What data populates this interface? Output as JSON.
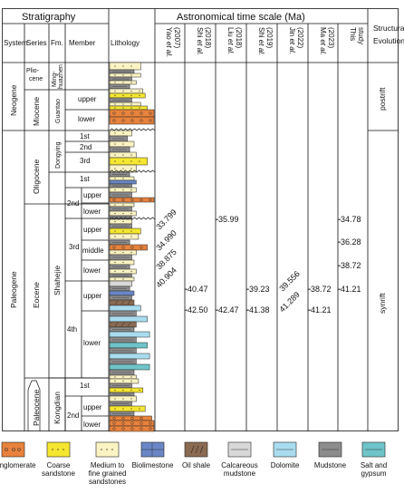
{
  "header": {
    "stratigraphy": "Stratigraphy",
    "system": "System",
    "series": "Series",
    "formation": "Fm.",
    "member": "Member",
    "lithology": "Lithology",
    "time_scale": "Astronomical time scale (Ma)",
    "structural_evolution": "Structural Evolution"
  },
  "systems": {
    "neogene": "Neogene",
    "paleogene": "Paleogene"
  },
  "series": {
    "pliocene": "Plio-\ncene",
    "miocene": "Miocene",
    "oligocene": "Oligocene",
    "eocene": "Eocene",
    "paleocene": "Paleocene"
  },
  "formations": {
    "minghuazhen": "Ming-\nhuazhen",
    "guantao": "Guantao",
    "dongying": "Dongying",
    "shahejie": "Shahejie",
    "kongdian": "Kongdian"
  },
  "members": {
    "guantao_upper": "upper",
    "guantao_lower": "lower",
    "dongying_1st": "1st",
    "dongying_2nd": "2nd",
    "dongying_3rd": "3rd",
    "shahejie_1st": "1st",
    "shahejie_2nd": "2nd",
    "shahejie_2nd_upper": "upper",
    "shahejie_2nd_lower": "lower",
    "shahejie_3rd": "3rd",
    "shahejie_3rd_upper": "upper",
    "shahejie_3rd_middle": "middle",
    "shahejie_3rd_lower": "lower",
    "shahejie_4th": "4th",
    "shahejie_4th_upper": "upper",
    "shahejie_4th_lower": "lower",
    "kongdian_1st": "1st",
    "kongdian_2nd": "2nd",
    "kongdian_2nd_upper": "upper",
    "kongdian_2nd_lower": "lower"
  },
  "studies": [
    {
      "author": "Yao",
      "etal": "et al.",
      "year": "(2007)"
    },
    {
      "author": "Shi",
      "etal": "et al.",
      "year": "(2018)"
    },
    {
      "author": "Liu",
      "etal": "et al.",
      "year": "(2018)"
    },
    {
      "author": "Shi",
      "etal": "et al.",
      "year": "(2019)"
    },
    {
      "author": "Jin",
      "etal": "et al.",
      "year": "(2022)"
    },
    {
      "author": "Ma",
      "etal": "et al.",
      "year": "(2023)"
    },
    {
      "author": "This",
      "etal": "",
      "year": "study"
    }
  ],
  "ages": {
    "yao": [
      "33.799",
      "34.990",
      "38.875",
      "40.904"
    ],
    "shi2018": [
      "-40.47",
      "-42.50"
    ],
    "liu2018": [
      "-35.99",
      "-42.47"
    ],
    "shi2019": [
      "-39.23",
      "-41.38"
    ],
    "jin2022": [
      "39.556",
      "41.289"
    ],
    "ma2023": [
      "-38.72",
      "-41.21"
    ],
    "this_study": [
      "-34.78",
      "-36.28",
      "-38.72",
      "-41.21"
    ]
  },
  "structural": {
    "postrift": "postrift",
    "synrift": "synrift"
  },
  "legend": [
    {
      "label": "Conglomerate",
      "color": "#e8823c"
    },
    {
      "label": "Coarse\nsandstone",
      "color": "#f5e630"
    },
    {
      "label": "Medium to\nfine grained\nsandstones",
      "color": "#fbf3c2"
    },
    {
      "label": "Biolimestone",
      "color": "#6a86c6"
    },
    {
      "label": "Oil shale",
      "color": "#8a6a52"
    },
    {
      "label": "Calcareous\nmudstone",
      "color": "#d8d8d8"
    },
    {
      "label": "Dolomite",
      "color": "#a9dcef"
    },
    {
      "label": "Mudstone",
      "color": "#8c8c8c"
    },
    {
      "label": "Salt and\ngypsum",
      "color": "#6ec4c8"
    }
  ]
}
